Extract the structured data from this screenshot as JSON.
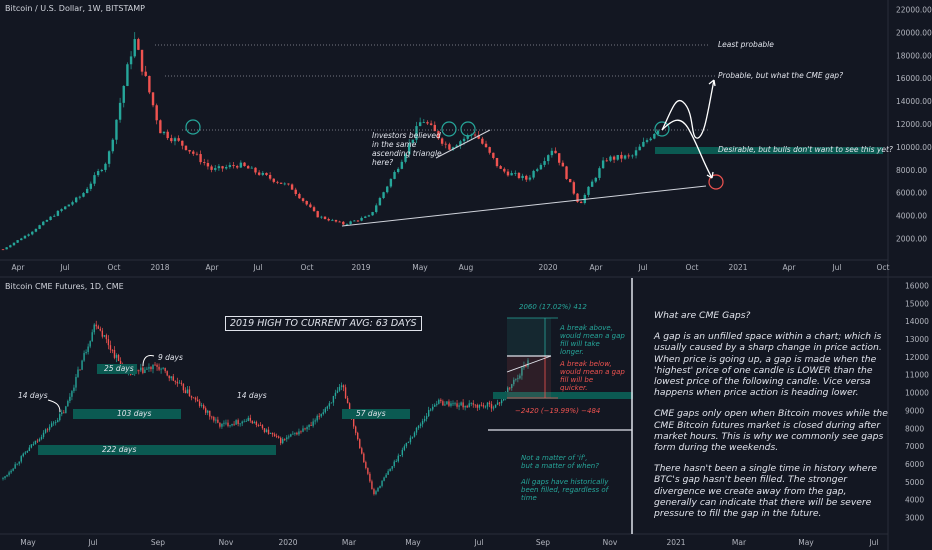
{
  "top_chart": {
    "symbol_label": "Bitcoin / U.S. Dollar, 1W, BITSTAMP",
    "y_ticks": [
      "22000.00",
      "20000.00",
      "18000.00",
      "16000.00",
      "14000.00",
      "12000.00",
      "10000.00",
      "8000.00",
      "6000.00",
      "4000.00",
      "2000.00"
    ],
    "x_ticks": [
      "Apr",
      "Jul",
      "Oct",
      "2018",
      "Apr",
      "Jul",
      "Oct",
      "2019",
      "May",
      "Aug",
      "2020",
      "Apr",
      "Jul",
      "Oct",
      "2021",
      "Apr",
      "Jul",
      "Oct"
    ],
    "annotations": {
      "least_probable": "Least probable",
      "probable": "Probable, but what the CME gap?",
      "desirable": "Desirable, but bulls don't want to see this yet?",
      "investors": [
        "Investors believed",
        "in the same",
        "ascending triangle",
        "here?"
      ]
    },
    "colors": {
      "up": "#26a69a",
      "down": "#ef5350",
      "circle_green": "#26a69a",
      "circle_red": "#ef5350",
      "gap_box": "#0b5a52"
    }
  },
  "bottom_chart": {
    "symbol_label": "Bitcoin CME Futures, 1D, CME",
    "y_ticks": [
      "16000",
      "15000",
      "14000",
      "13000",
      "12000",
      "11000",
      "10000",
      "9000",
      "8000",
      "7000",
      "6000",
      "5000",
      "4000",
      "3000"
    ],
    "x_ticks": [
      "May",
      "Jul",
      "Sep",
      "Nov",
      "2020",
      "Mar",
      "May",
      "Jul",
      "Sep",
      "Nov",
      "2021",
      "Mar",
      "May",
      "Jul"
    ],
    "headline": "2019 HIGH TO CURRENT AVG: 63 DAYS",
    "gap_boxes": [
      "222 days",
      "103 days",
      "25 days",
      "57 days"
    ],
    "day_labels": [
      "14 days",
      "9 days",
      "14 days"
    ],
    "measure_up": "2060 (17.02%) 412",
    "measure_down": "−2420 (−19.99%) −484",
    "break_above": [
      "A break above,",
      "would mean a gap",
      "fill will take",
      "longer."
    ],
    "break_below": [
      "A break below,",
      "would mean a gap",
      "fill will be",
      "quicker."
    ],
    "not_matter": [
      "Not a matter of 'if',",
      "but a matter of when?"
    ],
    "all_gaps": [
      "All gaps have historically",
      "been filled, regardless of",
      "time"
    ]
  },
  "info_panel": {
    "title": "What are CME Gaps?",
    "p1": "A gap is an unfilled space within a chart; which is usually caused by a sharp change in price action. When price is going up, a gap is made when the 'highest' price of one candle is LOWER than the lowest price of the following candle. Vice versa happens when price action is heading lower.",
    "p2": "CME gaps only open when Bitcoin moves while the CME Bitcoin futures market is closed during after market hours. This is why we commonly see gaps form during the weekends.",
    "p3": "There hasn't been a single time in history where BTC's gap hasn't been filled. The stronger divergence we create away from the gap, generally can indicate that there will be severe pressure to fill the gap in the future."
  },
  "chart_data": [
    {
      "type": "candlestick",
      "title": "Bitcoin / U.S. Dollar, 1W, BITSTAMP",
      "ylim": [
        0,
        22500
      ],
      "x": [
        "2017-03",
        "2017-06",
        "2017-09",
        "2017-10",
        "2017-11",
        "2017-12",
        "2018-01",
        "2018-02",
        "2018-03",
        "2018-05",
        "2018-07",
        "2018-09",
        "2018-11",
        "2018-12",
        "2019-03",
        "2019-05",
        "2019-06",
        "2019-07",
        "2019-08",
        "2019-10",
        "2019-12",
        "2020-02",
        "2020-03",
        "2020-05",
        "2020-07",
        "2020-08"
      ],
      "values": [
        1100,
        2500,
        4200,
        5800,
        9000,
        19500,
        11500,
        10000,
        8000,
        8500,
        7500,
        6500,
        4000,
        3300,
        4000,
        8000,
        12500,
        10000,
        11300,
        8000,
        7200,
        10000,
        5000,
        9000,
        9200,
        11700
      ],
      "levels": [
        {
          "label": "Least probable",
          "value": 19000
        },
        {
          "label": "Probable, but what the CME gap?",
          "value": 16200
        },
        {
          "label": "Desirable, but bulls don't want to see this yet?",
          "value": 9800
        }
      ]
    },
    {
      "type": "candlestick",
      "title": "Bitcoin CME Futures, 1D, CME",
      "ylim": [
        2400,
        16500
      ],
      "x": [
        "2019-04",
        "2019-05",
        "2019-06",
        "2019-06-26",
        "2019-07",
        "2019-08",
        "2019-09",
        "2019-10",
        "2019-11",
        "2019-12",
        "2020-01",
        "2020-02",
        "2020-03",
        "2020-04",
        "2020-05",
        "2020-06",
        "2020-07",
        "2020-08"
      ],
      "values": [
        5200,
        7200,
        9000,
        14000,
        11000,
        11500,
        10000,
        8200,
        8500,
        7300,
        8200,
        10400,
        4300,
        7000,
        9500,
        9300,
        9300,
        11800
      ],
      "gap_boxes": [
        {
          "label": "222 days",
          "low": 6600,
          "high": 6900
        },
        {
          "label": "103 days",
          "low": 8800,
          "high": 9200
        },
        {
          "label": "25 days",
          "low": 11200,
          "high": 11600
        },
        {
          "label": "57 days",
          "low": 8800,
          "high": 9200
        }
      ],
      "current_gap": {
        "low": 9700,
        "high": 10000
      }
    }
  ]
}
